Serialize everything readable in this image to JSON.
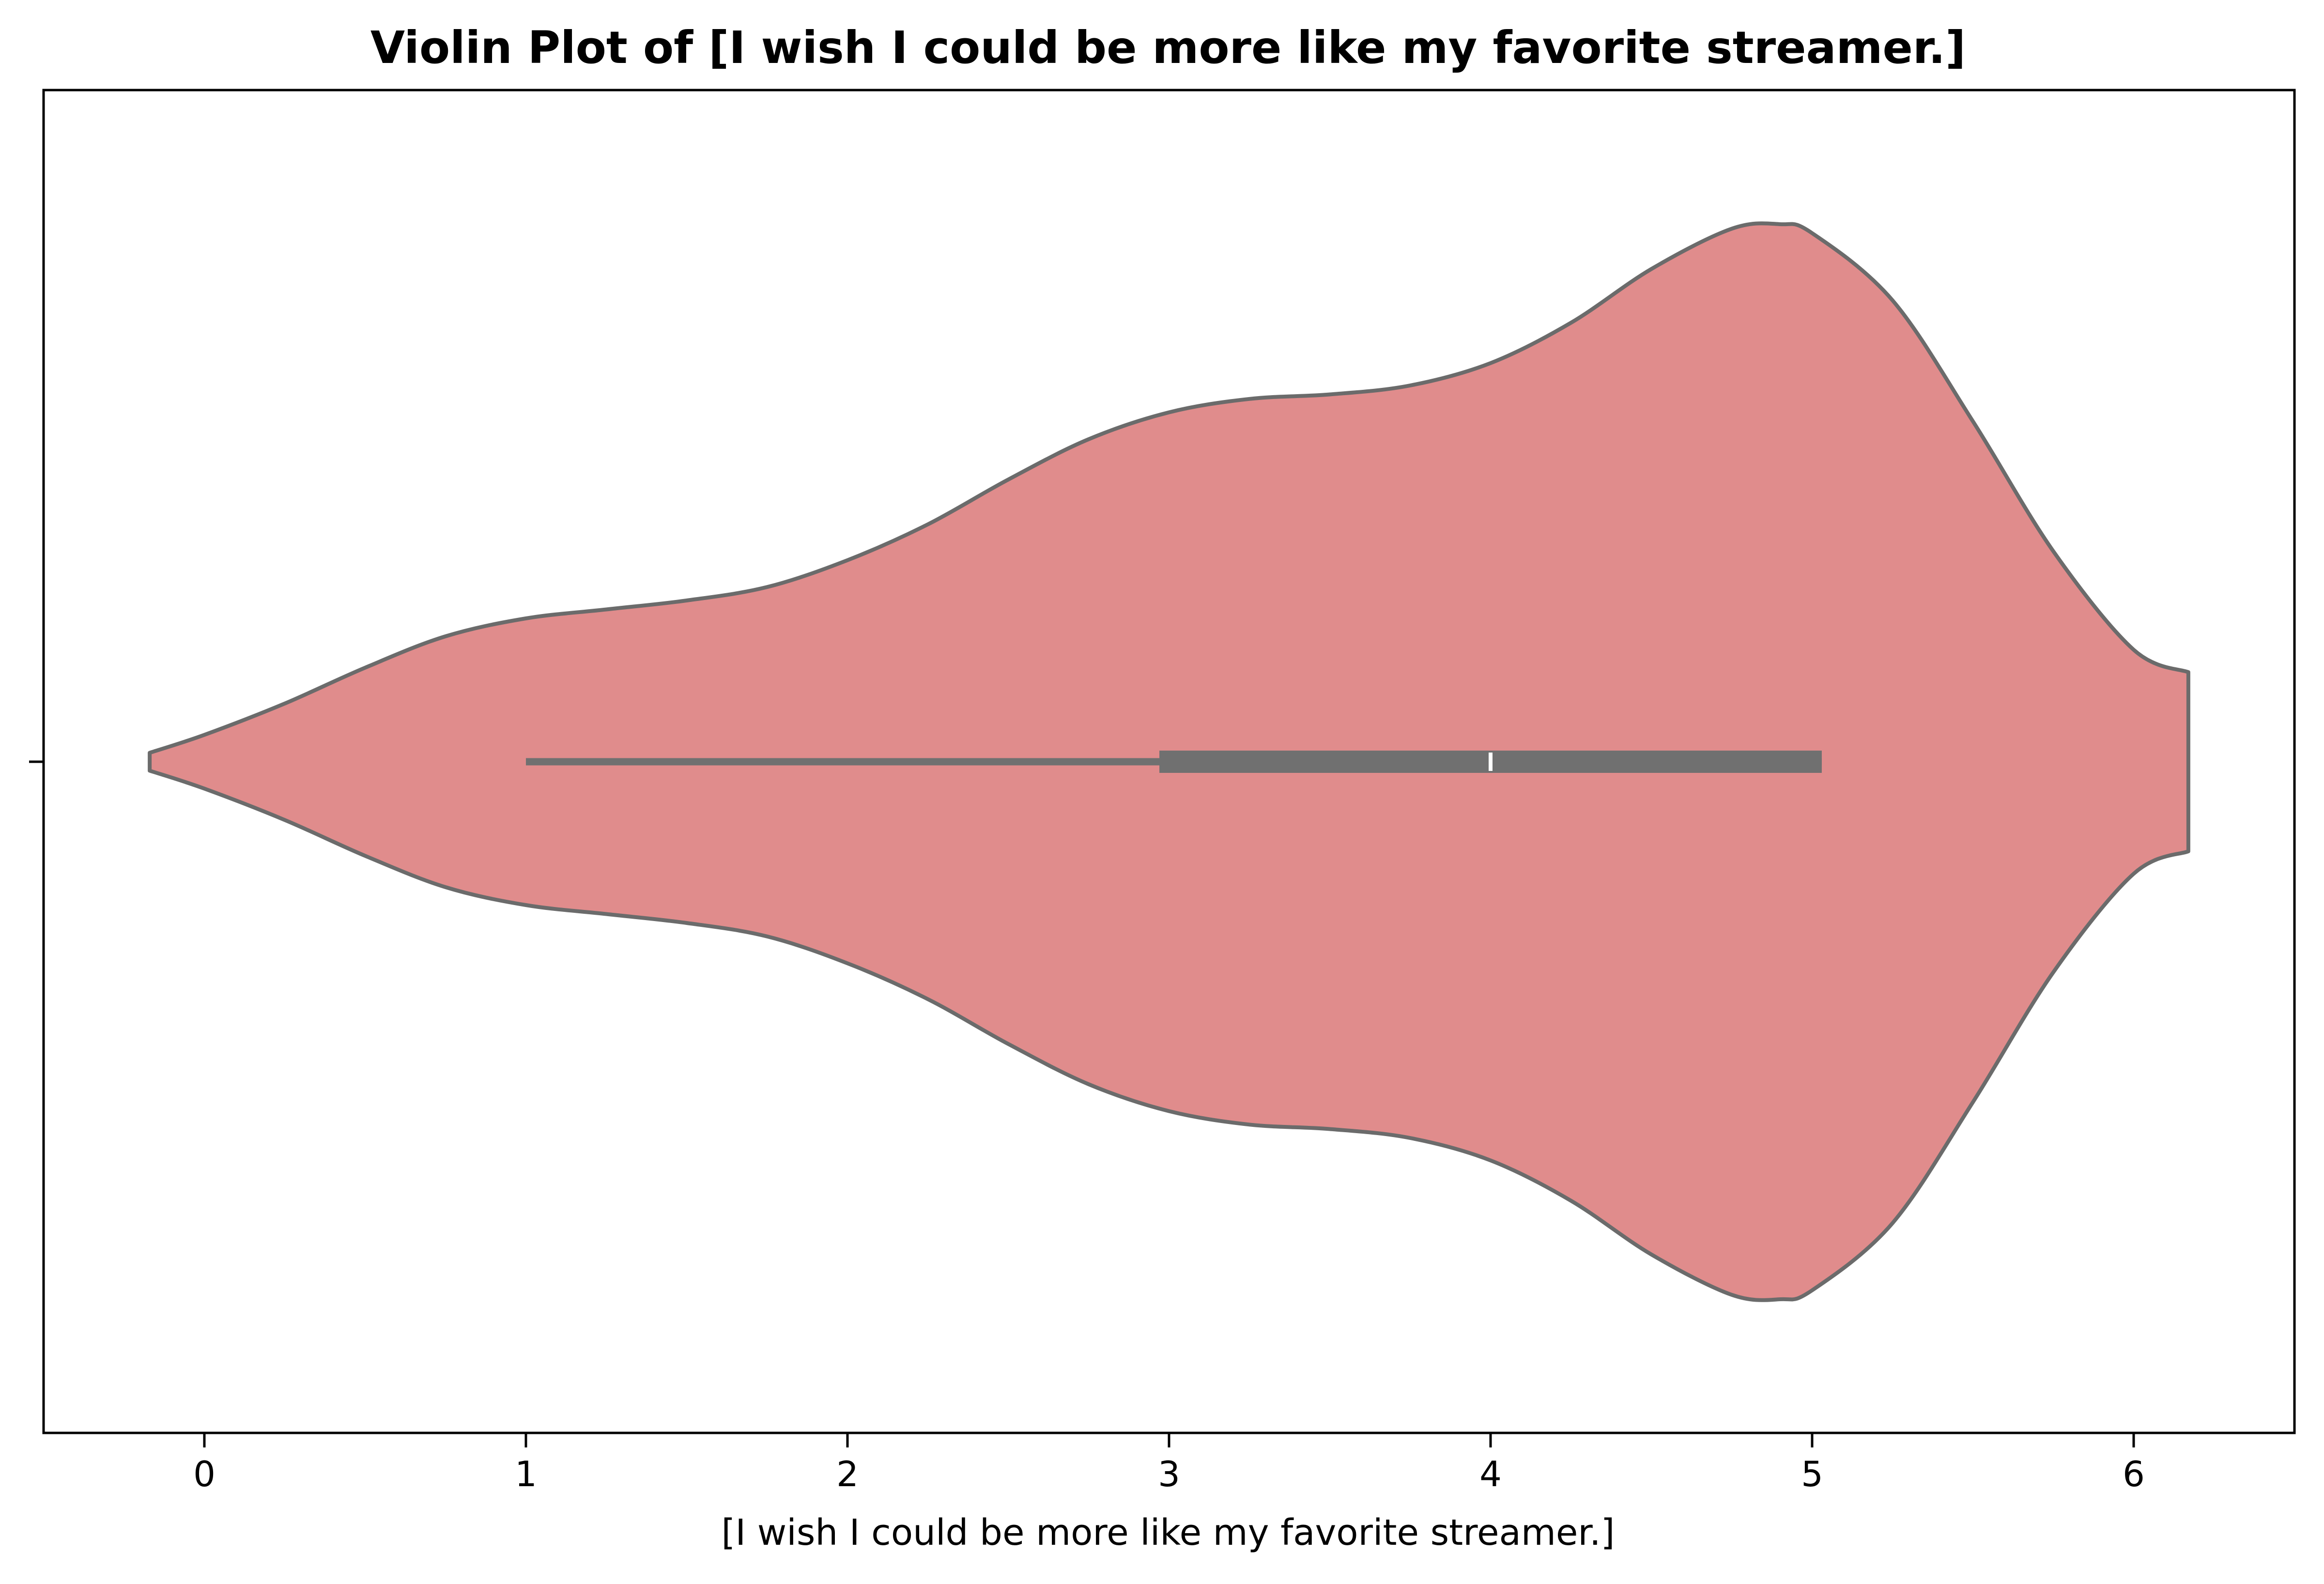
{
  "chart_data": {
    "type": "violin",
    "title": "Violin Plot of [I wish I could be more like my favorite streamer.]",
    "xlabel": "[I wish I could be more like my favorite streamer.]",
    "ylabel": "",
    "xlim": [
      -0.5,
      6.5
    ],
    "xticks": [
      "0",
      "1",
      "2",
      "3",
      "4",
      "5",
      "6"
    ],
    "grid": false,
    "colors": {
      "fill": "#e08c8c",
      "edge": "#6b6b6b",
      "box": "#707070",
      "median": "#ffffff"
    },
    "density_extent": [
      -0.17,
      6.17
    ],
    "density": [
      [
        -0.17,
        0.02
      ],
      [
        0.0,
        0.06
      ],
      [
        0.25,
        0.13
      ],
      [
        0.5,
        0.21
      ],
      [
        0.75,
        0.28
      ],
      [
        1.0,
        0.32
      ],
      [
        1.25,
        0.34
      ],
      [
        1.5,
        0.36
      ],
      [
        1.75,
        0.39
      ],
      [
        2.0,
        0.45
      ],
      [
        2.25,
        0.53
      ],
      [
        2.5,
        0.63
      ],
      [
        2.75,
        0.72
      ],
      [
        3.0,
        0.78
      ],
      [
        3.25,
        0.81
      ],
      [
        3.5,
        0.82
      ],
      [
        3.75,
        0.84
      ],
      [
        4.0,
        0.89
      ],
      [
        4.25,
        0.98
      ],
      [
        4.5,
        1.1
      ],
      [
        4.75,
        1.19
      ],
      [
        4.9,
        1.2
      ],
      [
        5.0,
        1.18
      ],
      [
        5.25,
        1.03
      ],
      [
        5.5,
        0.76
      ],
      [
        5.75,
        0.47
      ],
      [
        6.0,
        0.25
      ],
      [
        6.17,
        0.2
      ]
    ],
    "box": {
      "whisker_low": 1.0,
      "q1": 2.97,
      "median": 4.0,
      "q3": 5.03,
      "whisker_high": 5.03
    }
  }
}
